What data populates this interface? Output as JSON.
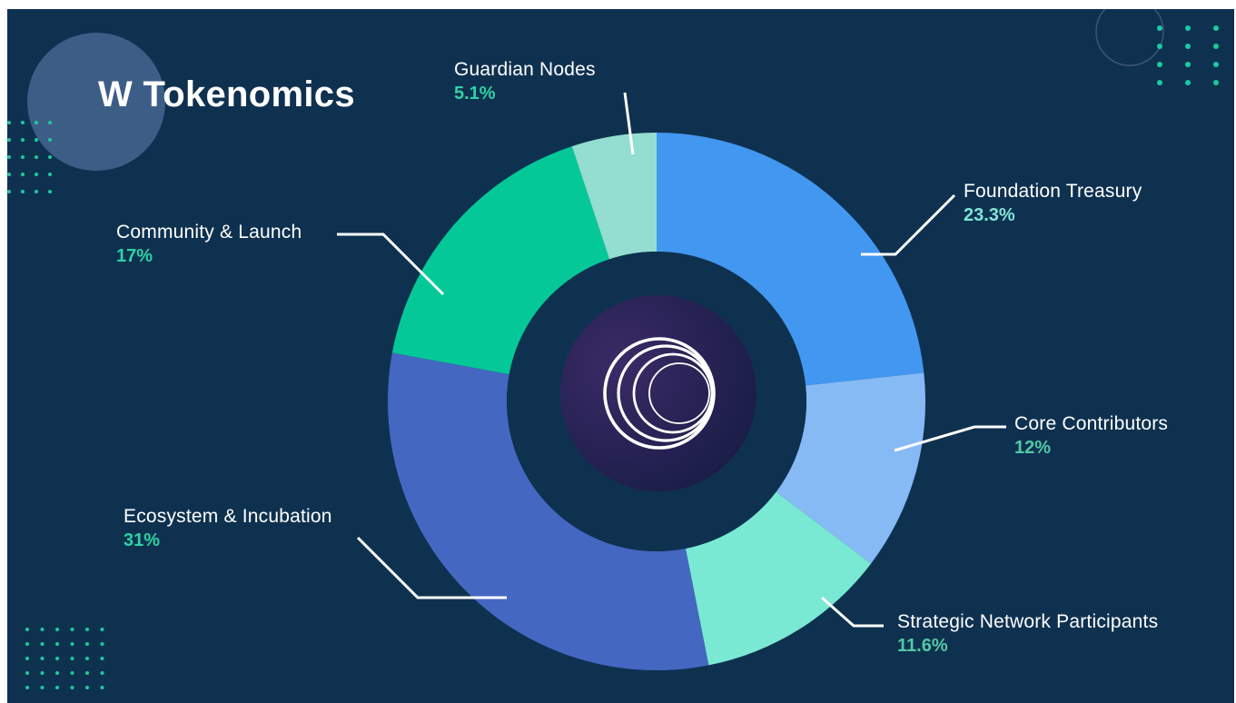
{
  "chart_data": {
    "type": "pie",
    "title": "W Tokenomics",
    "categories": [
      "Foundation Treasury",
      "Core Contributors",
      "Strategic Network Participants",
      "Ecosystem & Incubation",
      "Community & Launch",
      "Guardian Nodes"
    ],
    "values": [
      23.3,
      12,
      11.6,
      31,
      17,
      5.1
    ],
    "value_labels": [
      "23.3%",
      "12%",
      "11.6%",
      "31%",
      "17%",
      "5.1%"
    ],
    "colors": [
      "#4297f0",
      "#86baf5",
      "#79e9d3",
      "#4467c1",
      "#05c898",
      "#93ddd1"
    ],
    "label_colors": [
      "#7fe6d6",
      "#52c9a5",
      "#52c9a5",
      "#2fd1a5",
      "#2fd1a5",
      "#2fd1a5"
    ],
    "legend": "callout-labels"
  },
  "theme": {
    "background": "#0f3150",
    "hole": "#0f3150",
    "center_disc": "#2b2458",
    "accent_dots": "#1ec9a0"
  },
  "logo": {
    "icon": "w-wormhole-rings-icon"
  }
}
